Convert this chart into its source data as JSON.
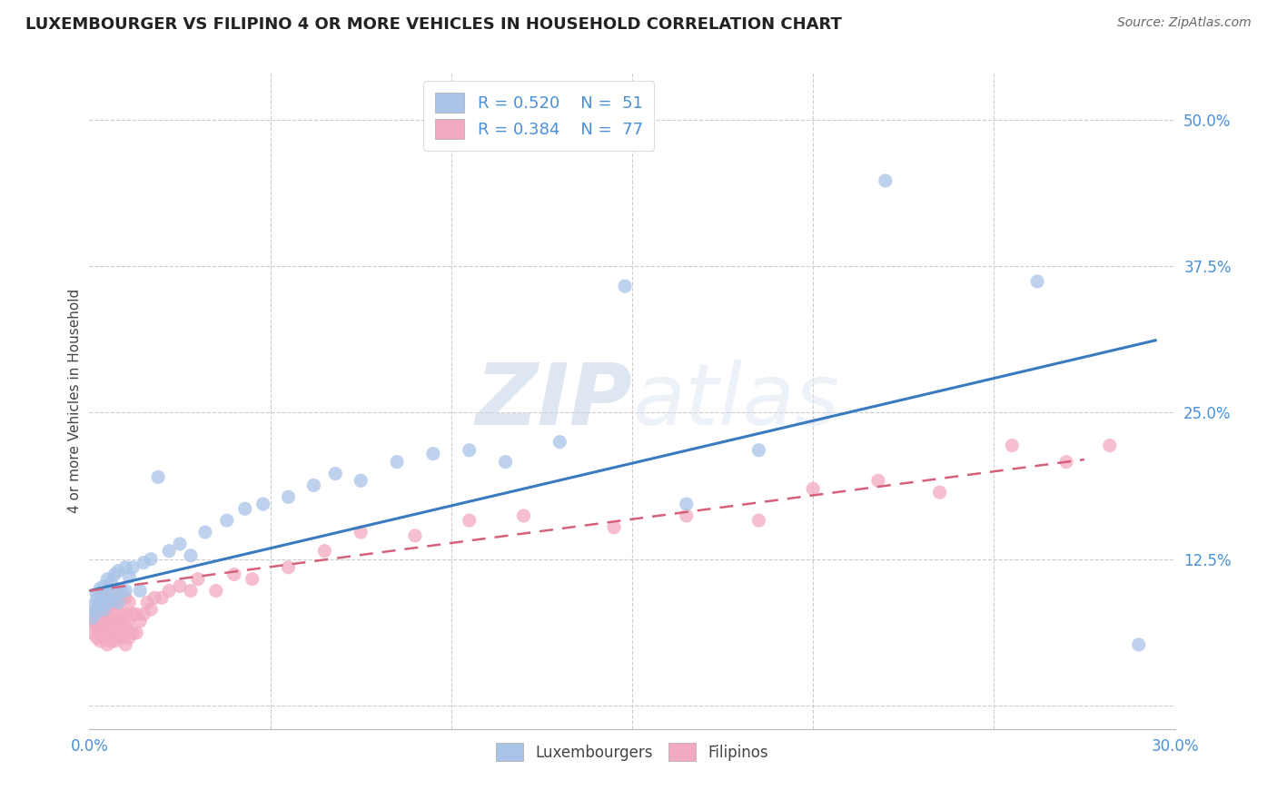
{
  "title": "LUXEMBOURGER VS FILIPINO 4 OR MORE VEHICLES IN HOUSEHOLD CORRELATION CHART",
  "source": "Source: ZipAtlas.com",
  "ylabel": "4 or more Vehicles in Household",
  "yticks": [
    0.0,
    0.125,
    0.25,
    0.375,
    0.5
  ],
  "ytick_labels": [
    "",
    "12.5%",
    "25.0%",
    "37.5%",
    "50.0%"
  ],
  "xlim": [
    0.0,
    0.3
  ],
  "ylim": [
    -0.02,
    0.54
  ],
  "legend_r1": "R = 0.520",
  "legend_n1": "N = 51",
  "legend_r2": "R = 0.384",
  "legend_n2": "N = 77",
  "color_lux": "#aac4e8",
  "color_fil": "#f2aac0",
  "color_lux_line": "#3a7abf",
  "color_fil_line": "#d4607a",
  "lux_scatter_x": [
    0.001,
    0.001,
    0.002,
    0.002,
    0.002,
    0.003,
    0.003,
    0.003,
    0.004,
    0.004,
    0.004,
    0.005,
    0.005,
    0.005,
    0.006,
    0.006,
    0.007,
    0.007,
    0.008,
    0.008,
    0.009,
    0.01,
    0.01,
    0.011,
    0.012,
    0.014,
    0.015,
    0.017,
    0.019,
    0.022,
    0.025,
    0.028,
    0.032,
    0.038,
    0.043,
    0.048,
    0.055,
    0.062,
    0.068,
    0.075,
    0.085,
    0.095,
    0.105,
    0.115,
    0.13,
    0.148,
    0.165,
    0.185,
    0.22,
    0.262,
    0.29
  ],
  "lux_scatter_y": [
    0.075,
    0.085,
    0.08,
    0.09,
    0.095,
    0.085,
    0.095,
    0.1,
    0.082,
    0.092,
    0.102,
    0.088,
    0.095,
    0.108,
    0.09,
    0.105,
    0.095,
    0.112,
    0.088,
    0.115,
    0.098,
    0.098,
    0.118,
    0.11,
    0.118,
    0.098,
    0.122,
    0.125,
    0.195,
    0.132,
    0.138,
    0.128,
    0.148,
    0.158,
    0.168,
    0.172,
    0.178,
    0.188,
    0.198,
    0.192,
    0.208,
    0.215,
    0.218,
    0.208,
    0.225,
    0.358,
    0.172,
    0.218,
    0.448,
    0.362,
    0.052
  ],
  "fil_scatter_x": [
    0.001,
    0.001,
    0.002,
    0.002,
    0.002,
    0.002,
    0.003,
    0.003,
    0.003,
    0.003,
    0.004,
    0.004,
    0.004,
    0.004,
    0.004,
    0.005,
    0.005,
    0.005,
    0.005,
    0.005,
    0.005,
    0.006,
    0.006,
    0.006,
    0.006,
    0.006,
    0.007,
    0.007,
    0.007,
    0.007,
    0.007,
    0.008,
    0.008,
    0.008,
    0.009,
    0.009,
    0.009,
    0.009,
    0.01,
    0.01,
    0.01,
    0.01,
    0.011,
    0.011,
    0.011,
    0.012,
    0.012,
    0.013,
    0.013,
    0.014,
    0.015,
    0.016,
    0.017,
    0.018,
    0.02,
    0.022,
    0.025,
    0.028,
    0.03,
    0.035,
    0.04,
    0.045,
    0.055,
    0.065,
    0.075,
    0.09,
    0.105,
    0.12,
    0.145,
    0.165,
    0.185,
    0.2,
    0.218,
    0.235,
    0.255,
    0.27,
    0.282
  ],
  "fil_scatter_y": [
    0.062,
    0.072,
    0.058,
    0.068,
    0.075,
    0.082,
    0.055,
    0.068,
    0.078,
    0.088,
    0.058,
    0.068,
    0.075,
    0.085,
    0.092,
    0.052,
    0.062,
    0.072,
    0.082,
    0.092,
    0.098,
    0.055,
    0.065,
    0.075,
    0.085,
    0.092,
    0.055,
    0.068,
    0.078,
    0.088,
    0.098,
    0.058,
    0.072,
    0.088,
    0.058,
    0.068,
    0.078,
    0.092,
    0.052,
    0.068,
    0.078,
    0.092,
    0.058,
    0.072,
    0.088,
    0.062,
    0.078,
    0.062,
    0.078,
    0.072,
    0.078,
    0.088,
    0.082,
    0.092,
    0.092,
    0.098,
    0.102,
    0.098,
    0.108,
    0.098,
    0.112,
    0.108,
    0.118,
    0.132,
    0.148,
    0.145,
    0.158,
    0.162,
    0.152,
    0.162,
    0.158,
    0.185,
    0.192,
    0.182,
    0.222,
    0.208,
    0.222
  ],
  "lux_trend_x": [
    0.0,
    0.295
  ],
  "lux_trend_y": [
    0.098,
    0.312
  ],
  "fil_trend_x": [
    0.0,
    0.275
  ],
  "fil_trend_y": [
    0.098,
    0.21
  ],
  "watermark_zip": "ZIP",
  "watermark_atlas": "atlas",
  "title_fontsize": 13,
  "source_fontsize": 10,
  "label_fontsize": 11,
  "tick_fontsize": 12,
  "legend_fontsize": 13
}
